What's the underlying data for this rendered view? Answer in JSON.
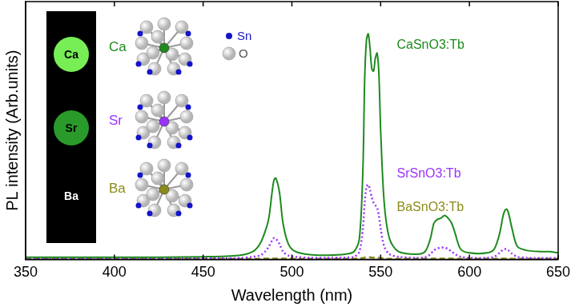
{
  "chart_data": {
    "type": "line",
    "x_label": "Wavelength (nm)",
    "y_label": "PL intensity (Arb.units)",
    "x": [
      350,
      400,
      450,
      470,
      478,
      482,
      485,
      487,
      489,
      490,
      491,
      493,
      495,
      498,
      502,
      510,
      520,
      530,
      535,
      538,
      540,
      541,
      542,
      543,
      544,
      545,
      546,
      547,
      548,
      549,
      550,
      552,
      555,
      560,
      570,
      575,
      578,
      580,
      582,
      584,
      586,
      588,
      590,
      592,
      595,
      600,
      610,
      614,
      617,
      619,
      620,
      621,
      622,
      624,
      627,
      632,
      640,
      645,
      650
    ],
    "series": [
      {
        "name": "CaSnO3:Tb",
        "color": "#1e8a1e",
        "line_style": "solid",
        "values": [
          0.8,
          0.8,
          1,
          1.5,
          3,
          6,
          11,
          16,
          27,
          31,
          31.5,
          26,
          14,
          6,
          3,
          1.8,
          1.6,
          2,
          3,
          8,
          35,
          70,
          85,
          87.5,
          82,
          74,
          73,
          78,
          80,
          72,
          50,
          22,
          8,
          3,
          2,
          3,
          8,
          14,
          15.5,
          16,
          17,
          16,
          14,
          10,
          4,
          2.5,
          2.5,
          4,
          10,
          17,
          19,
          19.5,
          18,
          12,
          5,
          3.5,
          3,
          3,
          2.5
        ]
      },
      {
        "name": "SrSnO3:Tb",
        "color": "#9933ff",
        "line_style": "dotted",
        "values": [
          0.3,
          0.3,
          0.4,
          0.5,
          1,
          1.5,
          3,
          5,
          7.5,
          8.3,
          8,
          6,
          3,
          1.5,
          1,
          0.6,
          0.6,
          0.7,
          1,
          3,
          12,
          22,
          28,
          29,
          27,
          24,
          22,
          21,
          20,
          17,
          12,
          5,
          2,
          1,
          0.6,
          0.8,
          2,
          3.5,
          4.2,
          4.6,
          4.5,
          4,
          3,
          2,
          1,
          0.6,
          0.6,
          1,
          2.5,
          3.8,
          4,
          4,
          3.5,
          2.2,
          1,
          0.6,
          0.5,
          0.5,
          0.5
        ]
      },
      {
        "name": "BaSnO3:Tb",
        "color": "#8b8b1a",
        "line_style": "dashed",
        "values": [
          0.2,
          0.2,
          0.2,
          0.2,
          0.2,
          0.2,
          0.3,
          0.3,
          0.3,
          0.3,
          0.3,
          0.3,
          0.3,
          0.2,
          0.2,
          0.2,
          0.2,
          0.2,
          0.2,
          0.3,
          0.5,
          0.7,
          0.8,
          0.8,
          0.8,
          0.7,
          0.7,
          0.7,
          0.7,
          0.6,
          0.5,
          0.3,
          0.2,
          0.2,
          0.2,
          0.2,
          0.2,
          0.3,
          0.3,
          0.3,
          0.3,
          0.3,
          0.3,
          0.2,
          0.2,
          0.2,
          0.2,
          0.2,
          0.2,
          0.3,
          0.3,
          0.3,
          0.3,
          0.2,
          0.2,
          0.2,
          0.2,
          0.2,
          0.2
        ]
      }
    ],
    "xlim": [
      350,
      650
    ],
    "xticks": [
      350,
      400,
      450,
      500,
      550,
      600,
      650
    ],
    "ylim": [
      0,
      100
    ],
    "tick_labels": "x",
    "grid": false,
    "inset": {
      "elements": [
        {
          "label": "Ca",
          "color": "#1e8a1e"
        },
        {
          "label": "Sr",
          "color": "#9933ff"
        },
        {
          "label": "Ba",
          "color": "#8b8b1a"
        }
      ],
      "atoms": [
        {
          "label": "Sn",
          "color": "#1414c8"
        },
        {
          "label": "O",
          "color": "#555555"
        }
      ]
    }
  }
}
